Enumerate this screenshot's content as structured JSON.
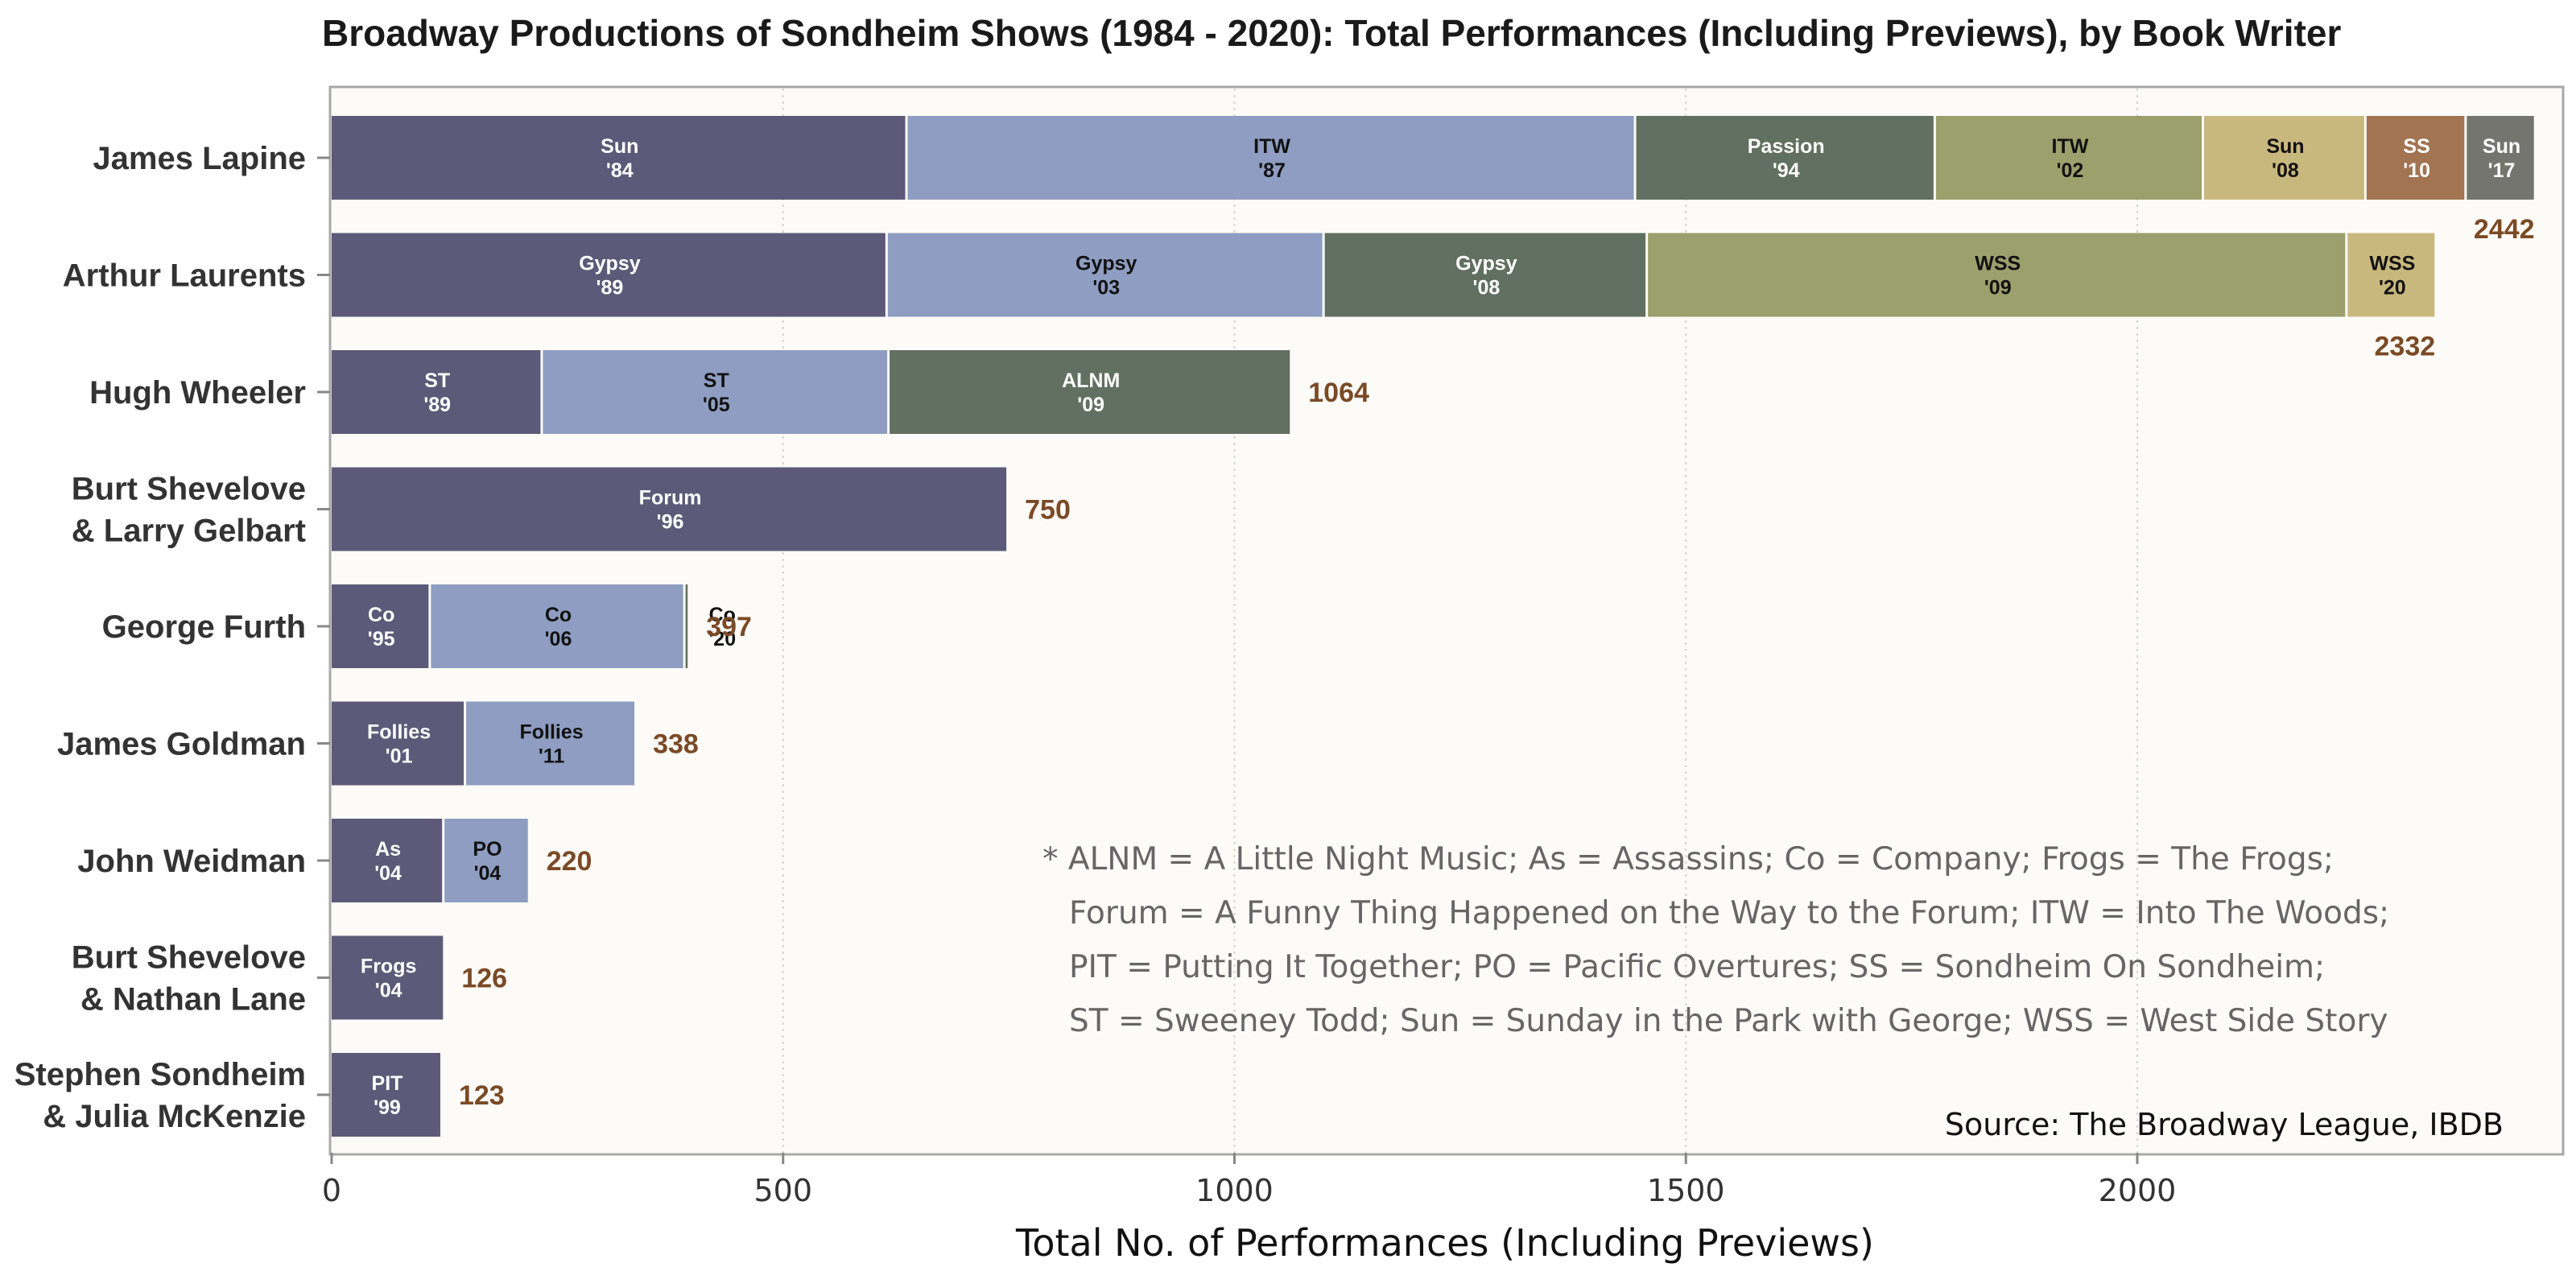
{
  "chart_data": {
    "type": "bar",
    "orientation": "horizontal",
    "stacked": true,
    "title": "Broadway Productions of Sondheim Shows (1984 - 2020): Total Performances (Including Previews), by Book Writer",
    "xlabel": "Total No. of Performances (Including Previews)",
    "ylabel": "",
    "xlim": [
      0,
      2442
    ],
    "xticks": [
      0,
      500,
      1000,
      1500,
      2000
    ],
    "grid": "vertical dotted",
    "colors": [
      "#5c5a78",
      "#8e9dc1",
      "#617060",
      "#9ba06c",
      "#c9b87d",
      "#a27452",
      "#757570"
    ],
    "total_color": "#7a4a26",
    "rows": [
      {
        "name": "James Lapine",
        "total": 2442,
        "segments": [
          {
            "label": "Sun\n'84",
            "value": 638
          },
          {
            "label": "ITW\n'87",
            "value": 807
          },
          {
            "label": "Passion\n'94",
            "value": 332
          },
          {
            "label": "ITW\n'02",
            "value": 297
          },
          {
            "label": "Sun\n'08",
            "value": 180
          },
          {
            "label": "SS\n'10",
            "value": 111
          },
          {
            "label": "Sun\n'17",
            "value": 77
          }
        ]
      },
      {
        "name": "Arthur Laurents",
        "total": 2332,
        "segments": [
          {
            "label": "Gypsy\n'89",
            "value": 616
          },
          {
            "label": "Gypsy\n'03",
            "value": 484
          },
          {
            "label": "Gypsy\n'08",
            "value": 358
          },
          {
            "label": "WSS\n'09",
            "value": 775
          },
          {
            "label": "WSS\n'20",
            "value": 99
          }
        ]
      },
      {
        "name": "Hugh Wheeler",
        "total": 1064,
        "segments": [
          {
            "label": "ST\n'89",
            "value": 234
          },
          {
            "label": "ST\n'05",
            "value": 384
          },
          {
            "label": "ALNM\n'09",
            "value": 446
          }
        ]
      },
      {
        "name": "Burt Shevelove\n& Larry Gelbart",
        "total": 750,
        "segments": [
          {
            "label": "Forum\n'96",
            "value": 750
          }
        ]
      },
      {
        "name": "George Furth",
        "total": 397,
        "segments": [
          {
            "label": "Co\n'95",
            "value": 110
          },
          {
            "label": "Co\n'06",
            "value": 282
          },
          {
            "label": "Co\n'20",
            "value": 5
          }
        ]
      },
      {
        "name": "James Goldman",
        "total": 338,
        "segments": [
          {
            "label": "Follies\n'01",
            "value": 149
          },
          {
            "label": "Follies\n'11",
            "value": 189
          }
        ]
      },
      {
        "name": "John Weidman",
        "total": 220,
        "segments": [
          {
            "label": "As\n'04",
            "value": 125
          },
          {
            "label": "PO\n'04",
            "value": 95
          }
        ]
      },
      {
        "name": "Burt Shevelove\n& Nathan Lane",
        "total": 126,
        "segments": [
          {
            "label": "Frogs\n'04",
            "value": 126
          }
        ]
      },
      {
        "name": "Stephen Sondheim\n& Julia McKenzie",
        "total": 123,
        "segments": [
          {
            "label": "PIT\n'99",
            "value": 123
          }
        ]
      }
    ],
    "annotations": [
      "* ALNM = A Little Night Music;  As = Assassins;  Co = Company;  Frogs = The Frogs;",
      "Forum = A Funny Thing Happened on the Way to the Forum; ITW = Into The Woods;",
      "PIT = Putting It Together;  PO = Pacific Overtures; SS = Sondheim On Sondheim;",
      "ST = Sweeney Todd; Sun = Sunday in the Park with George; WSS = West Side Story"
    ],
    "source": "Source: The Broadway League, IBDB"
  }
}
